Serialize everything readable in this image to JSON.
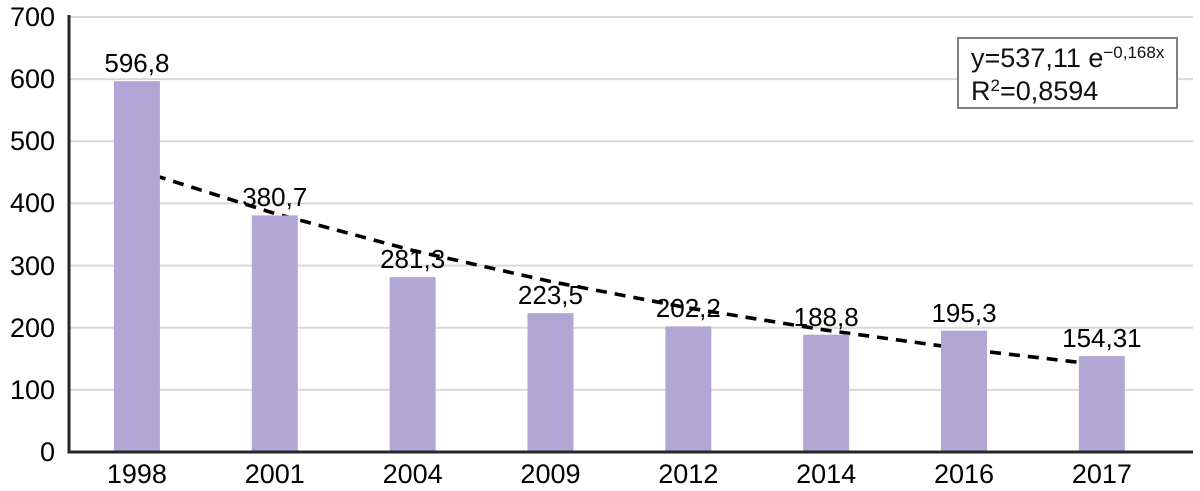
{
  "chart_data": {
    "type": "bar",
    "title": "",
    "categories": [
      "1998",
      "2001",
      "2004",
      "2009",
      "2012",
      "2014",
      "2016",
      "2017"
    ],
    "values": [
      596.8,
      380.7,
      281.3,
      223.5,
      202.2,
      188.8,
      195.3,
      154.31
    ],
    "value_labels": [
      "596,8",
      "380,7",
      "281,3",
      "223,5",
      "202,2",
      "188,8",
      "195,3",
      "154,31"
    ],
    "y_ticks": [
      0,
      100,
      200,
      300,
      400,
      500,
      600,
      700
    ],
    "y_tick_labels": [
      "0",
      "100",
      "200",
      "300",
      "400",
      "500",
      "600",
      "700"
    ],
    "ylim": [
      0,
      700
    ],
    "grid": "horizontal-gridlines",
    "legend": "none",
    "colors": {
      "bar_fill": "#b2a7d4",
      "gridline": "#d9d9d9",
      "axis": "#262626",
      "trendline": "#000000",
      "label_text": "#000000",
      "equation_box_border": "#7f7f7f"
    },
    "trendline": {
      "type": "exponential",
      "style": "dashed",
      "a": 537.11,
      "b": -0.168,
      "equation_base": "y=537,11 e",
      "equation_exponent": "−0,168x",
      "r2_base": "R",
      "r2_sup": "2",
      "r2_rest": "=0,8594"
    }
  }
}
